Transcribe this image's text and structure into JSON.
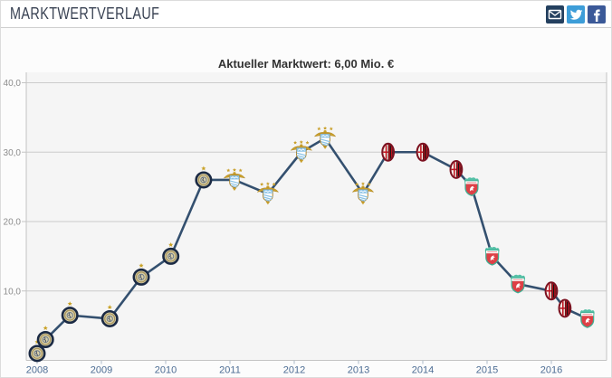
{
  "header": {
    "title": "MARKTWERTVERLAUF",
    "share": [
      {
        "id": "email",
        "label": "per E-Mail teilen",
        "bg": "#24405f"
      },
      {
        "id": "twitter",
        "label": "auf Twitter teilen",
        "bg": "#3d9dd8"
      },
      {
        "id": "facebook",
        "label": "auf Facebook teilen",
        "bg": "#3b5998"
      }
    ]
  },
  "chart_data": {
    "type": "line",
    "title": "Aktueller Marktwert: 6,00 Mio. €",
    "current_value_mio_eur": 6.0,
    "unit": "Mio. €",
    "grid": true,
    "legend": false,
    "line_color": "#34506f",
    "x_axis": {
      "ticks": [
        2008,
        2009,
        2010,
        2011,
        2012,
        2013,
        2014,
        2015,
        2016
      ]
    },
    "y_axis": {
      "ticks": [
        10,
        20,
        30,
        40
      ],
      "tick_labels": [
        "10,0",
        "20,0",
        "30,0",
        "40,0"
      ],
      "range": [
        0,
        41.5
      ]
    },
    "clubs": {
      "inter": "Inter Mailand",
      "mancity": "Manchester City",
      "milan": "AC Mailand",
      "liverpool": "FC Liverpool"
    },
    "points": [
      {
        "x": 2008.0,
        "value": 1.0,
        "club": "inter"
      },
      {
        "x": 2008.13,
        "value": 3.0,
        "club": "inter"
      },
      {
        "x": 2008.51,
        "value": 6.5,
        "club": "inter"
      },
      {
        "x": 2009.13,
        "value": 6.0,
        "club": "inter"
      },
      {
        "x": 2009.62,
        "value": 12.0,
        "club": "inter"
      },
      {
        "x": 2010.08,
        "value": 15.0,
        "club": "inter"
      },
      {
        "x": 2010.59,
        "value": 26.0,
        "club": "inter"
      },
      {
        "x": 2011.07,
        "value": 26.0,
        "club": "mancity"
      },
      {
        "x": 2011.59,
        "value": 24.0,
        "club": "mancity"
      },
      {
        "x": 2012.11,
        "value": 30.0,
        "club": "mancity"
      },
      {
        "x": 2012.48,
        "value": 32.0,
        "club": "mancity"
      },
      {
        "x": 2013.07,
        "value": 24.0,
        "club": "mancity"
      },
      {
        "x": 2013.46,
        "value": 30.0,
        "club": "milan"
      },
      {
        "x": 2014.0,
        "value": 30.0,
        "club": "milan"
      },
      {
        "x": 2014.52,
        "value": 27.5,
        "club": "milan"
      },
      {
        "x": 2014.76,
        "value": 25.0,
        "club": "liverpool"
      },
      {
        "x": 2015.08,
        "value": 15.0,
        "club": "liverpool"
      },
      {
        "x": 2015.48,
        "value": 11.0,
        "club": "liverpool"
      },
      {
        "x": 2016.0,
        "value": 10.0,
        "club": "milan"
      },
      {
        "x": 2016.21,
        "value": 7.5,
        "club": "milan"
      },
      {
        "x": 2016.56,
        "value": 6.0,
        "club": "liverpool"
      }
    ]
  }
}
